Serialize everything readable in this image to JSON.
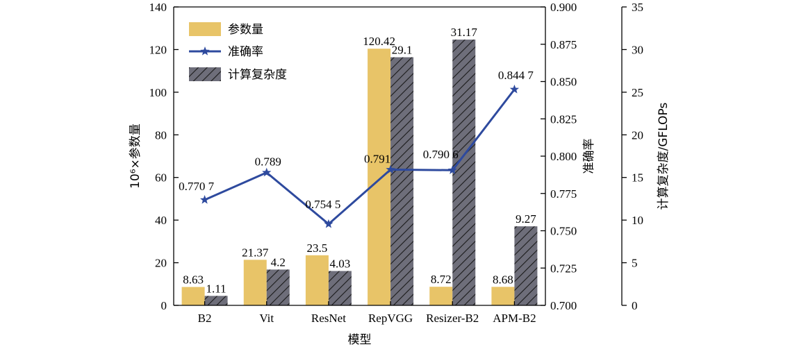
{
  "chart_data": {
    "type": "bar",
    "xlabel": "模型",
    "categories": [
      "B2",
      "Vit",
      "ResNet",
      "RepVGG",
      "Resizer-B2",
      "APM-B2"
    ],
    "axes": {
      "left": {
        "label": "10⁶×参数量",
        "ylim": [
          0,
          140
        ],
        "ticks": [
          0,
          20,
          40,
          60,
          80,
          100,
          120,
          140
        ]
      },
      "right_inner": {
        "label": "准确率",
        "ylim": [
          0.7,
          0.9
        ],
        "ticks": [
          "0.700",
          "0.725",
          "0.750",
          "0.775",
          "0.800",
          "0.825",
          "0.850",
          "0.875",
          "0.900"
        ]
      },
      "right_outer": {
        "label": "计算复杂度/GFLOPs",
        "ylim": [
          0,
          35
        ],
        "ticks": [
          0,
          5,
          10,
          15,
          20,
          25,
          30,
          35
        ]
      }
    },
    "series": [
      {
        "name": "参数量",
        "type": "bar",
        "axis": "left",
        "color": "#E8C468",
        "values": [
          8.63,
          21.37,
          23.5,
          120.42,
          8.72,
          8.68
        ],
        "labels": [
          "8.63",
          "21.37",
          "23.5",
          "120.42",
          "8.72",
          "8.68"
        ]
      },
      {
        "name": "准确率",
        "type": "line",
        "axis": "right_inner",
        "color": "#2E4A9E",
        "marker": "star",
        "values": [
          0.7707,
          0.789,
          0.7545,
          0.791,
          0.7906,
          0.8447
        ],
        "labels": [
          "0.770 7",
          "0.789",
          "0.754 5",
          "0.791",
          "0.790 6",
          "0.844 7"
        ]
      },
      {
        "name": "计算复杂度",
        "type": "bar",
        "axis": "right_outer",
        "color": "#6E6E7A",
        "pattern": "hatch",
        "values": [
          1.11,
          4.2,
          4.03,
          29.1,
          31.17,
          9.27
        ],
        "labels": [
          "1.11",
          "4.2",
          "4.03",
          "29.1",
          "31.17",
          "9.27"
        ]
      }
    ],
    "legend": {
      "placement": "top-left"
    }
  }
}
